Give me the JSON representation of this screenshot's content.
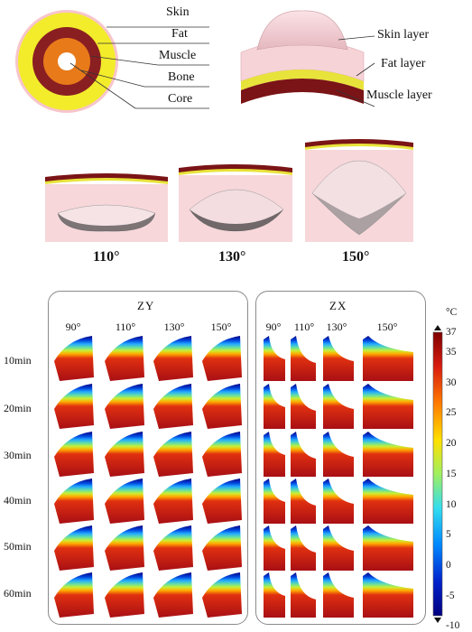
{
  "legend_cross_section": {
    "labels": [
      "Skin",
      "Fat",
      "Muscle",
      "Bone",
      "Core"
    ]
  },
  "layer_model": {
    "labels": [
      "Skin layer",
      "Fat layer",
      "Muscle layer"
    ]
  },
  "indent_models": {
    "angles": [
      "110°",
      "130°",
      "150°"
    ]
  },
  "zy_panel": {
    "title": "ZY",
    "columns": [
      "90°",
      "110°",
      "130°",
      "150°"
    ]
  },
  "zx_panel": {
    "title": "ZX",
    "columns": [
      "90°",
      "110°",
      "130°",
      "150°"
    ]
  },
  "time_rows": [
    "10min",
    "20min",
    "30min",
    "40min",
    "50min",
    "60min"
  ],
  "colorbar": {
    "unit": "°C",
    "max_label": "37",
    "ticks": [
      "35",
      "30",
      "25",
      "20",
      "15",
      "10",
      "5",
      "0",
      "-5",
      "-10"
    ],
    "colors": [
      "#00007f",
      "#0033cc",
      "#0099ff",
      "#33ccff",
      "#66e0a0",
      "#ccee33",
      "#ffcc00",
      "#ff6600",
      "#e02010",
      "#a00f12"
    ]
  }
}
